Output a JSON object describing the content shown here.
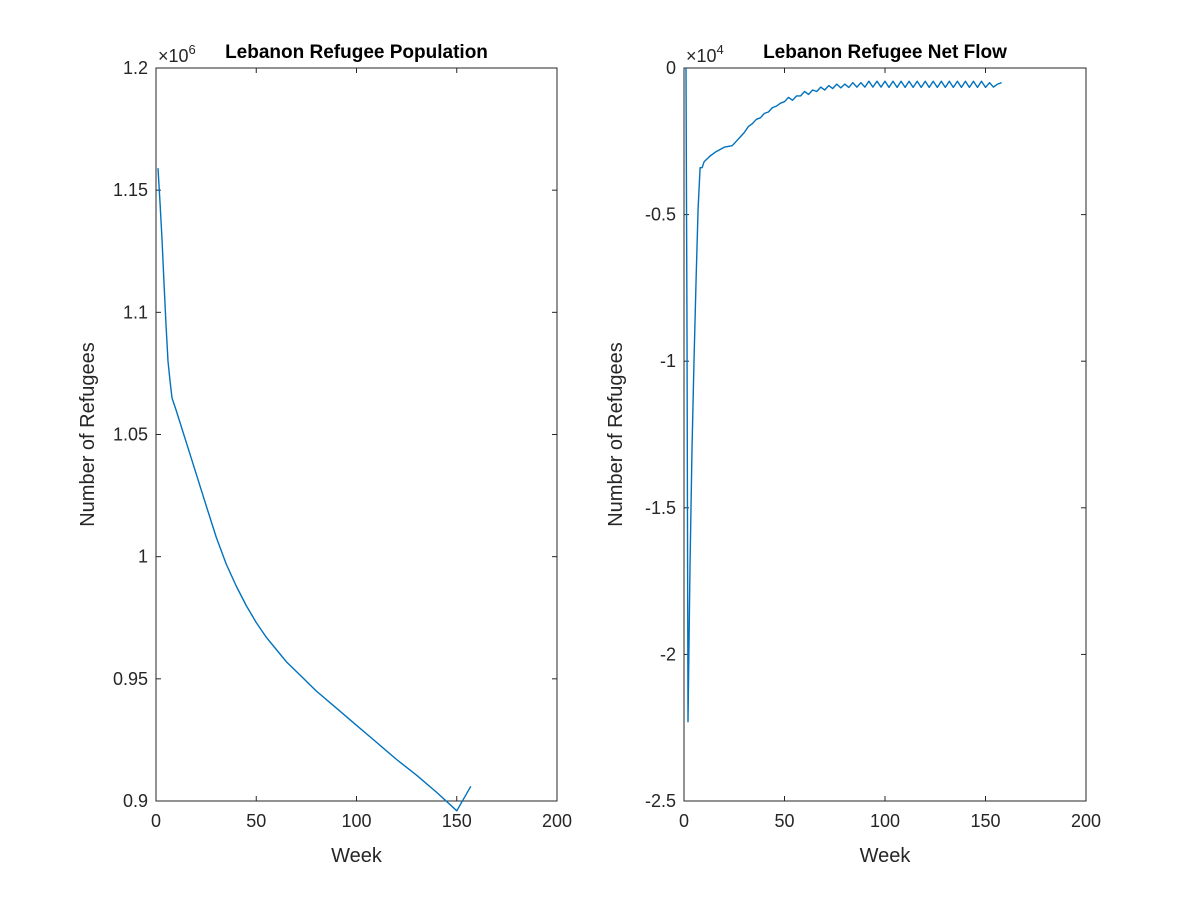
{
  "chart_data": [
    {
      "type": "line",
      "title": "Lebanon Refugee Population",
      "xlabel": "Week",
      "ylabel": "Number of Refugees",
      "xlim": [
        0,
        200
      ],
      "ylim": [
        0.9,
        1.2
      ],
      "y_exponent": {
        "base": "×10",
        "power": "6"
      },
      "xticks": [
        "0",
        "50",
        "100",
        "150",
        "200"
      ],
      "yticks": [
        "0.9",
        "0.95",
        "1",
        "1.05",
        "1.1",
        "1.15",
        "1.2"
      ],
      "grid": false,
      "color": "#0072BD",
      "x": [
        1,
        2,
        3,
        4,
        5,
        6,
        7,
        8,
        10,
        15,
        20,
        25,
        30,
        35,
        40,
        45,
        50,
        55,
        60,
        65,
        70,
        80,
        90,
        100,
        110,
        120,
        130,
        140,
        150,
        157
      ],
      "y": [
        1.159,
        1.145,
        1.13,
        1.112,
        1.095,
        1.08,
        1.072,
        1.065,
        1.06,
        1.047,
        1.034,
        1.021,
        1.008,
        0.997,
        0.988,
        0.98,
        0.973,
        0.967,
        0.962,
        0.957,
        0.953,
        0.945,
        0.938,
        0.931,
        0.924,
        0.917,
        0.9105,
        0.9035,
        0.896,
        0.906
      ]
    },
    {
      "type": "line",
      "title": "Lebanon Refugee Net Flow",
      "xlabel": "Week",
      "ylabel": "Number of Refugees",
      "xlim": [
        0,
        200
      ],
      "ylim": [
        -2.5,
        0
      ],
      "y_exponent": {
        "base": "×10",
        "power": "4"
      },
      "xticks": [
        "0",
        "50",
        "100",
        "150",
        "200"
      ],
      "yticks": [
        "-2.5",
        "-2",
        "-1.5",
        "-1",
        "-0.5",
        "0"
      ],
      "grid": false,
      "color": "#0072BD",
      "x": [
        1,
        1.5,
        2,
        3,
        4,
        5,
        6,
        7,
        8,
        9,
        10,
        13,
        16,
        20,
        24,
        26,
        28,
        30,
        32,
        34,
        36,
        38,
        40,
        42,
        44,
        46,
        48,
        50,
        52,
        54,
        56,
        58,
        60,
        62,
        64,
        66,
        68,
        70,
        72,
        74,
        76,
        78,
        80,
        82,
        84,
        86,
        88,
        90,
        92,
        94,
        96,
        98,
        100,
        102,
        104,
        106,
        108,
        110,
        112,
        114,
        116,
        118,
        120,
        122,
        124,
        126,
        128,
        130,
        132,
        134,
        136,
        138,
        140,
        142,
        144,
        146,
        148,
        150,
        152,
        154,
        156,
        158
      ],
      "y": [
        0,
        -0.9,
        -2.23,
        -1.7,
        -1.3,
        -1.0,
        -0.72,
        -0.48,
        -0.34,
        -0.34,
        -0.32,
        -0.3,
        -0.285,
        -0.27,
        -0.265,
        -0.25,
        -0.235,
        -0.22,
        -0.2,
        -0.19,
        -0.175,
        -0.17,
        -0.155,
        -0.15,
        -0.135,
        -0.13,
        -0.12,
        -0.115,
        -0.1,
        -0.11,
        -0.095,
        -0.095,
        -0.08,
        -0.09,
        -0.075,
        -0.08,
        -0.065,
        -0.075,
        -0.06,
        -0.07,
        -0.055,
        -0.068,
        -0.055,
        -0.066,
        -0.05,
        -0.065,
        -0.05,
        -0.065,
        -0.045,
        -0.065,
        -0.045,
        -0.065,
        -0.045,
        -0.066,
        -0.045,
        -0.066,
        -0.045,
        -0.066,
        -0.045,
        -0.066,
        -0.045,
        -0.066,
        -0.045,
        -0.066,
        -0.045,
        -0.066,
        -0.045,
        -0.066,
        -0.045,
        -0.066,
        -0.045,
        -0.066,
        -0.045,
        -0.066,
        -0.045,
        -0.066,
        -0.045,
        -0.066,
        -0.05,
        -0.065,
        -0.055,
        -0.05
      ]
    }
  ]
}
